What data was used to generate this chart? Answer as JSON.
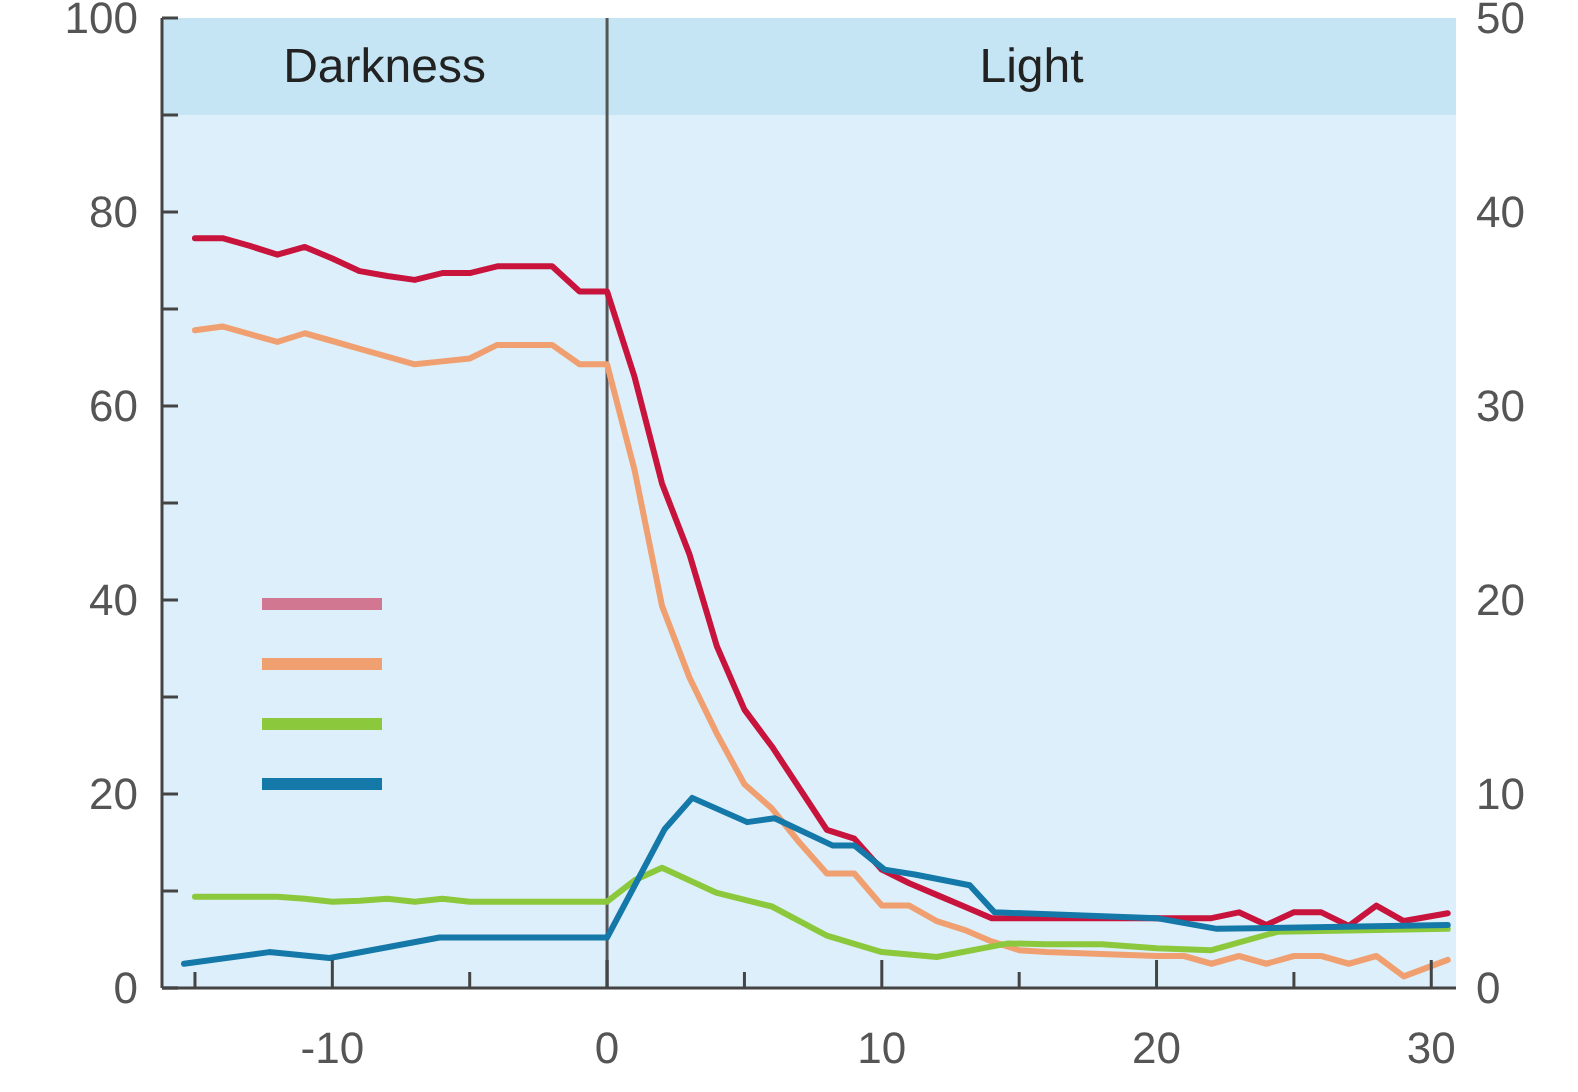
{
  "chart_data": {
    "type": "line",
    "xlim": [
      -16.2,
      30.9
    ],
    "xticks": [
      {
        "value": -15,
        "label": null
      },
      -10,
      {
        "value": -5,
        "label": null
      },
      0,
      {
        "value": 5,
        "label": null
      },
      10,
      {
        "value": 15,
        "label": null
      },
      20,
      {
        "value": 25,
        "label": null
      },
      30
    ],
    "ylim": [
      0,
      100
    ],
    "yticks": [
      0,
      {
        "value": 10,
        "label": null
      },
      20,
      {
        "value": 30,
        "label": null
      },
      40,
      {
        "value": 50,
        "label": null
      },
      60,
      {
        "value": 70,
        "label": null
      },
      80,
      {
        "value": 90,
        "label": null
      },
      100
    ],
    "y2lim": [
      0,
      50
    ],
    "y2ticks": [
      0,
      10,
      20,
      30,
      40,
      50
    ],
    "grid": false,
    "annotations": [
      "Darkness",
      "Light"
    ],
    "bands": [
      {
        "axis": "y",
        "from": 90,
        "to": 100,
        "color": "#c6e5f4"
      }
    ],
    "ref_lines": [
      {
        "axis": "x",
        "value": 0,
        "color": "#555555"
      }
    ],
    "series": [
      {
        "color": "#c8143c",
        "x": [
          -15,
          -14,
          -13,
          -12,
          -11,
          -10,
          -9,
          -8,
          -7,
          -6,
          -5,
          -4,
          -3,
          -2,
          -1,
          0,
          1,
          2,
          3,
          4,
          5,
          6,
          7,
          8,
          9,
          10,
          11,
          12,
          13,
          14,
          16,
          18,
          20,
          22,
          23,
          24,
          25,
          26,
          27,
          28,
          29,
          30.6
        ],
        "values": [
          77.3,
          77.3,
          76.5,
          75.6,
          76.4,
          75.2,
          73.9,
          73.4,
          73.0,
          73.7,
          73.7,
          74.4,
          74.4,
          74.4,
          71.8,
          71.8,
          63,
          52,
          44.7,
          35.2,
          28.7,
          24.9,
          20.6,
          16.3,
          15.4,
          12.2,
          10.8,
          9.6,
          8.4,
          7.2,
          7.2,
          7.2,
          7.2,
          7.2,
          7.8,
          6.5,
          7.8,
          7.8,
          6.4,
          8.5,
          6.9,
          7.7
        ]
      },
      {
        "color": "#f0a070",
        "x": [
          -15,
          -14,
          -13,
          -12,
          -11,
          -10,
          -9,
          -8,
          -7,
          -6,
          -5,
          -4,
          -3,
          -2,
          -1,
          0,
          1,
          2,
          3,
          4,
          5,
          6,
          7,
          8,
          9,
          10,
          11,
          12,
          13,
          14,
          15,
          16,
          17,
          18,
          19,
          20,
          21,
          22,
          23,
          24,
          25,
          26,
          27,
          28,
          29,
          30.6
        ],
        "values": [
          67.8,
          68.2,
          67.4,
          66.6,
          67.5,
          66.7,
          65.9,
          65.1,
          64.3,
          64.6,
          64.9,
          66.3,
          66.3,
          66.3,
          64.3,
          64.3,
          53.4,
          39.4,
          32,
          26.2,
          21,
          18.5,
          15,
          11.8,
          11.8,
          8.5,
          8.5,
          6.9,
          6,
          4.8,
          3.9,
          3.7,
          3.6,
          3.5,
          3.4,
          3.3,
          3.3,
          2.5,
          3.3,
          2.5,
          3.3,
          3.3,
          2.5,
          3.3,
          1.2,
          2.9
        ]
      },
      {
        "color": "#8cc83c",
        "x": [
          -15,
          -12,
          -11,
          -10,
          -9,
          -8,
          -7,
          -6,
          -5,
          0,
          1,
          2,
          4,
          6,
          8,
          10,
          12,
          14.6,
          16,
          18,
          20,
          22,
          24.4,
          30.6
        ],
        "values": [
          9.4,
          9.4,
          9.2,
          8.9,
          9.0,
          9.2,
          8.9,
          9.2,
          8.9,
          8.9,
          11.1,
          12.4,
          9.8,
          8.4,
          5.4,
          3.7,
          3.2,
          4.6,
          4.5,
          4.5,
          4.1,
          3.9,
          5.8,
          6.1
        ]
      },
      {
        "color": "#1478a8",
        "x": [
          -15.4,
          -12.3,
          -10.1,
          -6.1,
          0,
          2.1,
          3.1,
          5.1,
          6.1,
          8.2,
          9,
          10.1,
          11.2,
          13.2,
          14.1,
          20,
          22.2,
          30.6
        ],
        "values": [
          2.5,
          3.7,
          3.1,
          5.2,
          5.2,
          16.4,
          19.6,
          17.1,
          17.5,
          14.7,
          14.7,
          12.2,
          11.7,
          10.6,
          7.8,
          7.2,
          6.1,
          6.5
        ]
      }
    ]
  }
}
